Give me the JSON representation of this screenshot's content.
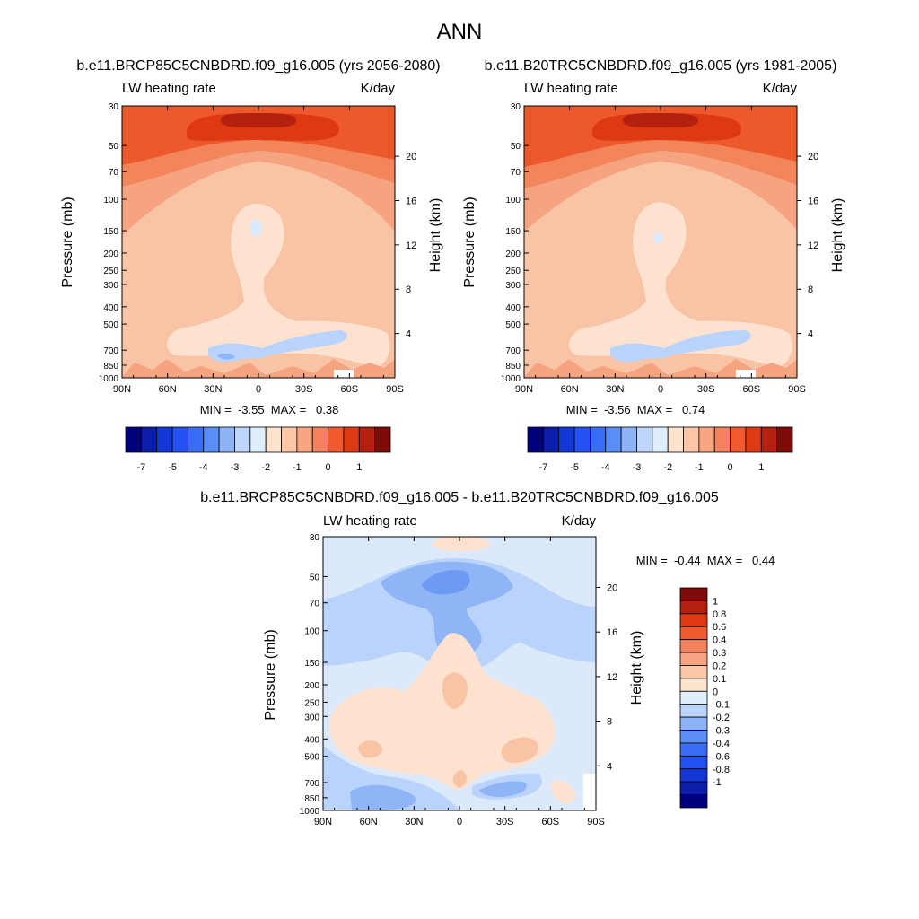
{
  "page_title": "ANN",
  "palette": {
    "neg": [
      "#00007f",
      "#0a1fa5",
      "#1438d6",
      "#2452f0",
      "#3a6df5",
      "#5a8ef5",
      "#8db2f7",
      "#bdd5f9"
    ],
    "zero": "#dfeefb",
    "pos": [
      "#fde4cf",
      "#fbc7a8",
      "#f8a582",
      "#f4825c",
      "#f15a2e",
      "#dd3a13",
      "#b3200d",
      "#7f0a08"
    ],
    "panel_fill": [
      "#ec5a2b",
      "#f2855a",
      "#f6a47f",
      "#f9c3a5",
      "#fde3cf",
      "#dbe9fb",
      "#b9d3fa",
      "#8fb5f6",
      "#6d9af3"
    ]
  },
  "chart_data": [
    {
      "type": "heatmap",
      "title": "b.e11.BRCP85C5CNBDRD.f09_g16.005 (yrs 2056-2080)",
      "left_label": "LW heating rate",
      "right_label": "K/day",
      "ylabel": "Pressure (mb)",
      "y2label": "Height (km)",
      "x_ticks": [
        "90N",
        "60N",
        "30N",
        "0",
        "30S",
        "60S",
        "90S"
      ],
      "y_ticks": [
        30,
        50,
        70,
        100,
        150,
        200,
        250,
        300,
        400,
        500,
        700,
        850,
        1000
      ],
      "y2_ticks": [
        20,
        16,
        12,
        8,
        4
      ],
      "ylim": [
        1000,
        30
      ],
      "xlim": [
        "90N",
        "90S"
      ],
      "min_text": "MIN =  -3.55  MAX =   0.38",
      "min": -3.55,
      "max": 0.38,
      "colorbar_labels": [
        "-7",
        "-5",
        "-4",
        "-3",
        "-2",
        "-1",
        "0",
        "1"
      ]
    },
    {
      "type": "heatmap",
      "title": "b.e11.B20TRC5CNBDRD.f09_g16.005 (yrs 1981-2005)",
      "left_label": "LW heating rate",
      "right_label": "K/day",
      "ylabel": "Pressure (mb)",
      "y2label": "Height (km)",
      "x_ticks": [
        "90N",
        "60N",
        "30N",
        "0",
        "30S",
        "60S",
        "90S"
      ],
      "y_ticks": [
        30,
        50,
        70,
        100,
        150,
        200,
        250,
        300,
        400,
        500,
        700,
        850,
        1000
      ],
      "y2_ticks": [
        20,
        16,
        12,
        8,
        4
      ],
      "ylim": [
        1000,
        30
      ],
      "xlim": [
        "90N",
        "90S"
      ],
      "min_text": "MIN =  -3.56  MAX =   0.74",
      "min": -3.56,
      "max": 0.74,
      "colorbar_labels": [
        "-7",
        "-5",
        "-4",
        "-3",
        "-2",
        "-1",
        "0",
        "1"
      ]
    },
    {
      "type": "heatmap",
      "title": "b.e11.BRCP85C5CNBDRD.f09_g16.005 - b.e11.B20TRC5CNBDRD.f09_g16.005",
      "left_label": "LW heating rate",
      "right_label": "K/day",
      "ylabel": "Pressure (mb)",
      "y2label": "Height (km)",
      "x_ticks": [
        "90N",
        "60N",
        "30N",
        "0",
        "30S",
        "60S",
        "90S"
      ],
      "y_ticks": [
        30,
        50,
        70,
        100,
        150,
        200,
        250,
        300,
        400,
        500,
        700,
        850,
        1000
      ],
      "y2_ticks": [
        20,
        16,
        12,
        8,
        4
      ],
      "ylim": [
        1000,
        30
      ],
      "xlim": [
        "90N",
        "90S"
      ],
      "min_text": "MIN =  -0.44  MAX =   0.44",
      "min": -0.44,
      "max": 0.44,
      "colorbar_labels": [
        "1",
        "0.8",
        "0.6",
        "0.4",
        "0.3",
        "0.2",
        "0.1",
        "0",
        "-0.1",
        "-0.2",
        "-0.3",
        "-0.4",
        "-0.6",
        "-0.8",
        "-1"
      ]
    }
  ]
}
